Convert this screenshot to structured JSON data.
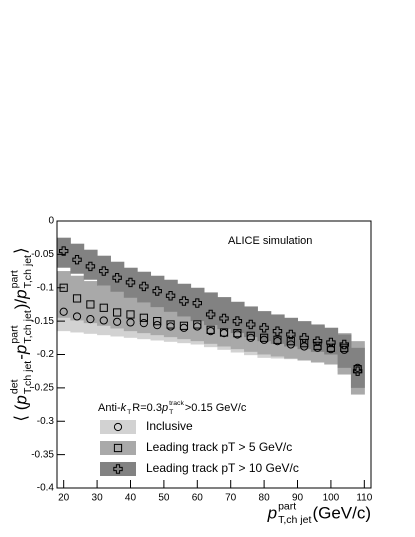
{
  "chart_data": {
    "type": "scatter_band",
    "annotation": "ALICE simulation",
    "subtitle": [
      {
        "text": "Anti-"
      },
      {
        "text": "k",
        "sub": "T"
      },
      {
        "text": " R=0.3   "
      },
      {
        "text": "p",
        "sup": "track",
        "sub": "T"
      },
      {
        "text": ">0.15 GeV/c"
      }
    ],
    "y_label": [
      {
        "text": "⟨ ("
      },
      {
        "text": "p",
        "sup": "det",
        "sub": "T,ch jet"
      },
      {
        "text": " - "
      },
      {
        "text": "p",
        "sup": "part",
        "sub": "T,ch jet"
      },
      {
        "text": ")/"
      },
      {
        "text": "p",
        "sup": "part",
        "sub": "T,ch jet"
      },
      {
        "text": " ⟩"
      }
    ],
    "x_label": [
      {
        "text": "p",
        "sup": "part",
        "sub": "T,ch jet"
      },
      {
        "text": "(GeV/c)"
      }
    ],
    "x": [
      20,
      24,
      28,
      32,
      36,
      40,
      44,
      48,
      52,
      56,
      60,
      64,
      68,
      72,
      76,
      80,
      84,
      88,
      92,
      96,
      100,
      104,
      108
    ],
    "xlim": [
      18,
      112
    ],
    "xticks": [
      20,
      30,
      40,
      50,
      60,
      70,
      80,
      90,
      100,
      110
    ],
    "ylim": [
      -0.4,
      0
    ],
    "yticks": [
      0,
      -0.05,
      -0.1,
      -0.15,
      -0.2,
      -0.25,
      -0.3,
      -0.35,
      -0.4
    ],
    "series": [
      {
        "name": "Inclusive",
        "marker": "circle",
        "color": "#d2d2d2",
        "values": [
          -0.136,
          -0.143,
          -0.147,
          -0.149,
          -0.151,
          -0.152,
          -0.153,
          -0.156,
          -0.158,
          -0.16,
          -0.158,
          -0.165,
          -0.168,
          -0.17,
          -0.175,
          -0.178,
          -0.18,
          -0.185,
          -0.188,
          -0.19,
          -0.192,
          -0.193,
          -0.22
        ],
        "band_high": [
          -0.118,
          -0.122,
          -0.126,
          -0.129,
          -0.132,
          -0.135,
          -0.136,
          -0.137,
          -0.138,
          -0.139,
          -0.14,
          -0.143,
          -0.146,
          -0.149,
          -0.152,
          -0.155,
          -0.158,
          -0.161,
          -0.164,
          -0.167,
          -0.17,
          -0.175,
          -0.185
        ],
        "band_low": [
          -0.165,
          -0.167,
          -0.169,
          -0.171,
          -0.173,
          -0.175,
          -0.177,
          -0.179,
          -0.181,
          -0.183,
          -0.185,
          -0.189,
          -0.193,
          -0.197,
          -0.201,
          -0.205,
          -0.206,
          -0.207,
          -0.208,
          -0.209,
          -0.21,
          -0.225,
          -0.26
        ]
      },
      {
        "name": "Leading track pT > 5 GeV/c",
        "marker": "square",
        "color": "#a9a9a9",
        "values": [
          -0.1,
          -0.116,
          -0.125,
          -0.13,
          -0.137,
          -0.14,
          -0.145,
          -0.15,
          -0.155,
          -0.157,
          -0.155,
          -0.163,
          -0.167,
          -0.168,
          -0.172,
          -0.175,
          -0.178,
          -0.18,
          -0.183,
          -0.187,
          -0.19,
          -0.19,
          -0.222
        ],
        "band_high": [
          -0.075,
          -0.082,
          -0.09,
          -0.097,
          -0.104,
          -0.11,
          -0.113,
          -0.116,
          -0.119,
          -0.122,
          -0.125,
          -0.129,
          -0.133,
          -0.137,
          -0.141,
          -0.145,
          -0.148,
          -0.151,
          -0.154,
          -0.157,
          -0.16,
          -0.168,
          -0.18
        ],
        "band_low": [
          -0.145,
          -0.149,
          -0.153,
          -0.157,
          -0.161,
          -0.165,
          -0.168,
          -0.171,
          -0.174,
          -0.177,
          -0.18,
          -0.184,
          -0.188,
          -0.192,
          -0.196,
          -0.2,
          -0.203,
          -0.206,
          -0.209,
          -0.212,
          -0.215,
          -0.23,
          -0.26
        ]
      },
      {
        "name": "Leading track pT > 10 GeV/c",
        "marker": "cross",
        "color": "#828282",
        "values": [
          -0.045,
          -0.058,
          -0.068,
          -0.075,
          -0.085,
          -0.092,
          -0.098,
          -0.105,
          -0.112,
          -0.12,
          -0.123,
          -0.14,
          -0.146,
          -0.15,
          -0.155,
          -0.16,
          -0.165,
          -0.17,
          -0.175,
          -0.18,
          -0.182,
          -0.185,
          -0.225
        ],
        "band_high": [
          -0.025,
          -0.034,
          -0.043,
          -0.052,
          -0.061,
          -0.07,
          -0.076,
          -0.082,
          -0.088,
          -0.094,
          -0.1,
          -0.107,
          -0.114,
          -0.121,
          -0.128,
          -0.135,
          -0.14,
          -0.145,
          -0.15,
          -0.155,
          -0.16,
          -0.17,
          -0.19
        ],
        "band_low": [
          -0.07,
          -0.079,
          -0.088,
          -0.097,
          -0.106,
          -0.115,
          -0.122,
          -0.129,
          -0.136,
          -0.143,
          -0.15,
          -0.156,
          -0.162,
          -0.168,
          -0.174,
          -0.18,
          -0.184,
          -0.188,
          -0.192,
          -0.196,
          -0.2,
          -0.22,
          -0.25
        ]
      }
    ]
  }
}
